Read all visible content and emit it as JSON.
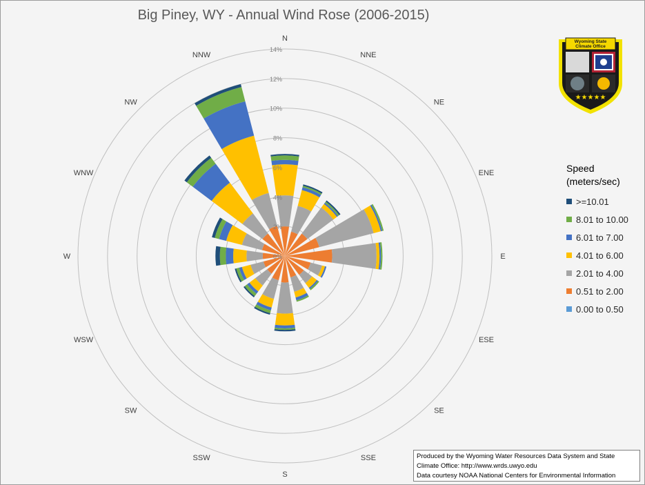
{
  "chart_data": {
    "type": "radar-stacked-bar",
    "title": "Big Piney, WY - Annual Wind Rose (2006-2015)",
    "directions": [
      "N",
      "NNE",
      "NE",
      "ENE",
      "E",
      "ESE",
      "SE",
      "SSE",
      "S",
      "SSW",
      "SW",
      "WSW",
      "W",
      "WNW",
      "NW",
      "NNW"
    ],
    "radial_ticks": [
      "0%",
      "2%",
      "4%",
      "6%",
      "8%",
      "10%",
      "12%",
      "14%"
    ],
    "rlim": [
      0,
      14
    ],
    "legend_title": "Speed (meters/sec)",
    "legend_position": "right",
    "bins": [
      {
        "name": ">=10.01",
        "color": "#1f4e79"
      },
      {
        "name": "8.01 to 10.00",
        "color": "#70ad47"
      },
      {
        "name": "6.01 to 7.00",
        "color": "#4472c4"
      },
      {
        "name": "4.01 to 6.00",
        "color": "#ffc000"
      },
      {
        "name": "2.01 to 4.00",
        "color": "#a5a5a5"
      },
      {
        "name": "0.51 to 2.00",
        "color": "#ed7d31"
      },
      {
        "name": "0.00 to 0.50",
        "color": "#5b9bd5"
      }
    ],
    "sectors": [
      {
        "dir": "N",
        "values": [
          0.1,
          0.3,
          0.3,
          2.1,
          2.1,
          2.0,
          0.0
        ]
      },
      {
        "dir": "NNE",
        "values": [
          0.1,
          0.1,
          0.2,
          1.1,
          1.8,
          1.7,
          0.0
        ]
      },
      {
        "dir": "NE",
        "values": [
          0.1,
          0.1,
          0.1,
          0.3,
          2.2,
          1.9,
          0.0
        ]
      },
      {
        "dir": "ENE",
        "values": [
          0.0,
          0.1,
          0.1,
          0.5,
          3.8,
          2.4,
          0.0
        ]
      },
      {
        "dir": "E",
        "values": [
          0.0,
          0.1,
          0.1,
          0.2,
          3.0,
          3.2,
          0.0
        ]
      },
      {
        "dir": "ESE",
        "values": [
          0.0,
          0.0,
          0.1,
          0.2,
          0.8,
          1.8,
          0.0
        ]
      },
      {
        "dir": "SE",
        "values": [
          0.0,
          0.1,
          0.1,
          0.4,
          0.7,
          1.6,
          0.0
        ]
      },
      {
        "dir": "SSE",
        "values": [
          0.0,
          0.1,
          0.2,
          0.4,
          1.0,
          1.5,
          0.0
        ]
      },
      {
        "dir": "S",
        "values": [
          0.1,
          0.1,
          0.2,
          0.8,
          2.1,
          1.8,
          0.0
        ]
      },
      {
        "dir": "SSW",
        "values": [
          0.1,
          0.2,
          0.2,
          0.6,
          1.3,
          1.7,
          0.0
        ]
      },
      {
        "dir": "SW",
        "values": [
          0.1,
          0.2,
          0.2,
          0.5,
          1.0,
          1.5,
          0.0
        ]
      },
      {
        "dir": "WSW",
        "values": [
          0.1,
          0.2,
          0.2,
          0.6,
          0.9,
          1.5,
          0.0
        ]
      },
      {
        "dir": "W",
        "values": [
          0.3,
          0.4,
          0.5,
          0.9,
          1.1,
          1.5,
          0.0
        ]
      },
      {
        "dir": "WNW",
        "values": [
          0.2,
          0.3,
          0.5,
          1.1,
          1.4,
          1.6,
          0.0
        ]
      },
      {
        "dir": "NW",
        "values": [
          0.2,
          0.5,
          1.6,
          2.6,
          1.7,
          1.9,
          0.0
        ]
      },
      {
        "dir": "NNW",
        "values": [
          0.2,
          1.0,
          2.4,
          4.0,
          2.3,
          2.1,
          0.0
        ]
      }
    ]
  },
  "credit": {
    "line1": "Produced by the Wyoming Water Resources Data System and State",
    "line2": "Climate Office: http://www.wrds.uwyo.edu",
    "line3": "Data courtesy NOAA National Centers for Environmental Information"
  },
  "logo": {
    "line1": "Wyoming State",
    "line2": "Climate Office",
    "colors": {
      "shield": "#1a1a1a",
      "border": "#f2e200",
      "ribbon": "#f5d800"
    }
  }
}
